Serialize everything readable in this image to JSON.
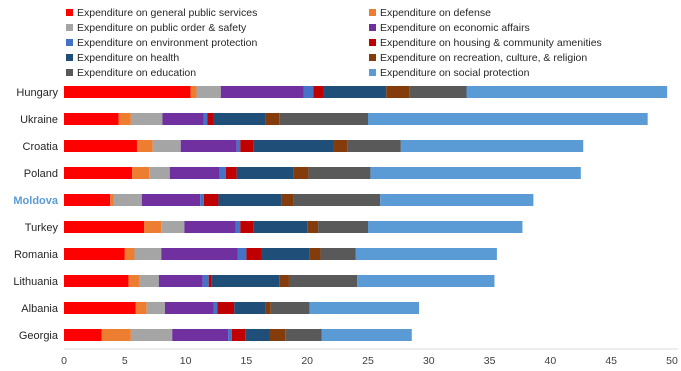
{
  "chart_data": {
    "type": "bar",
    "orientation": "horizontal",
    "stacked": true,
    "title": "",
    "xlabel": "",
    "ylabel": "",
    "xlim": [
      0,
      50
    ],
    "xticks": [
      "0",
      "5",
      "10",
      "15",
      "20",
      "25",
      "30",
      "35",
      "40",
      "45",
      "50"
    ],
    "grid": false,
    "legend_position": "top",
    "highlighted_category": "Moldova",
    "highlight_color": "#5b9bd5",
    "categories": [
      "Hungary",
      "Ukraine",
      "Croatia",
      "Poland",
      "Moldova",
      "Turkey",
      "Romania",
      "Lithuania",
      "Albania",
      "Georgia"
    ],
    "series": [
      {
        "name": "Expenditure on general public services",
        "color": "#ff0000",
        "values": [
          10.4,
          4.5,
          6.0,
          5.6,
          3.8,
          6.6,
          5.0,
          5.3,
          5.9,
          3.1
        ]
      },
      {
        "name": "Expenditure on defense",
        "color": "#ed7d31",
        "values": [
          0.5,
          1.0,
          1.3,
          1.4,
          0.3,
          1.4,
          0.8,
          0.9,
          0.9,
          2.4
        ]
      },
      {
        "name": "Expenditure on public order & safety",
        "color": "#a5a5a5",
        "values": [
          2.0,
          2.6,
          2.3,
          1.7,
          2.3,
          1.9,
          2.2,
          1.6,
          1.5,
          3.4
        ]
      },
      {
        "name": "Expenditure on economic affairs",
        "color": "#7030a0",
        "values": [
          6.8,
          3.4,
          4.6,
          4.1,
          4.8,
          4.2,
          6.3,
          3.6,
          4.0,
          4.6
        ]
      },
      {
        "name": "Expenditure on environment protection",
        "color": "#4472c4",
        "values": [
          0.8,
          0.3,
          0.3,
          0.5,
          0.3,
          0.4,
          0.7,
          0.5,
          0.3,
          0.3
        ]
      },
      {
        "name": "Expenditure on housing & community amenities",
        "color": "#c00000",
        "values": [
          0.8,
          0.5,
          1.1,
          0.9,
          1.2,
          1.1,
          1.2,
          0.2,
          1.4,
          1.1
        ]
      },
      {
        "name": "Expenditure on health",
        "color": "#1f4e79",
        "values": [
          5.2,
          4.3,
          6.6,
          4.7,
          5.2,
          4.4,
          4.0,
          5.6,
          2.6,
          2.0
        ]
      },
      {
        "name": "Expenditure on recreation, culture, & religion",
        "color": "#843c0c",
        "values": [
          1.9,
          1.1,
          1.1,
          1.2,
          1.0,
          0.9,
          0.9,
          0.8,
          0.4,
          1.3
        ]
      },
      {
        "name": "Expenditure on education",
        "color": "#595959",
        "values": [
          4.7,
          7.3,
          4.4,
          5.1,
          7.1,
          4.1,
          2.9,
          5.6,
          3.2,
          3.0
        ]
      },
      {
        "name": "Expenditure on social protection",
        "color": "#5b9bd5",
        "values": [
          16.5,
          23.0,
          15.0,
          17.3,
          12.6,
          12.7,
          11.6,
          11.3,
          9.0,
          7.4
        ]
      }
    ]
  }
}
